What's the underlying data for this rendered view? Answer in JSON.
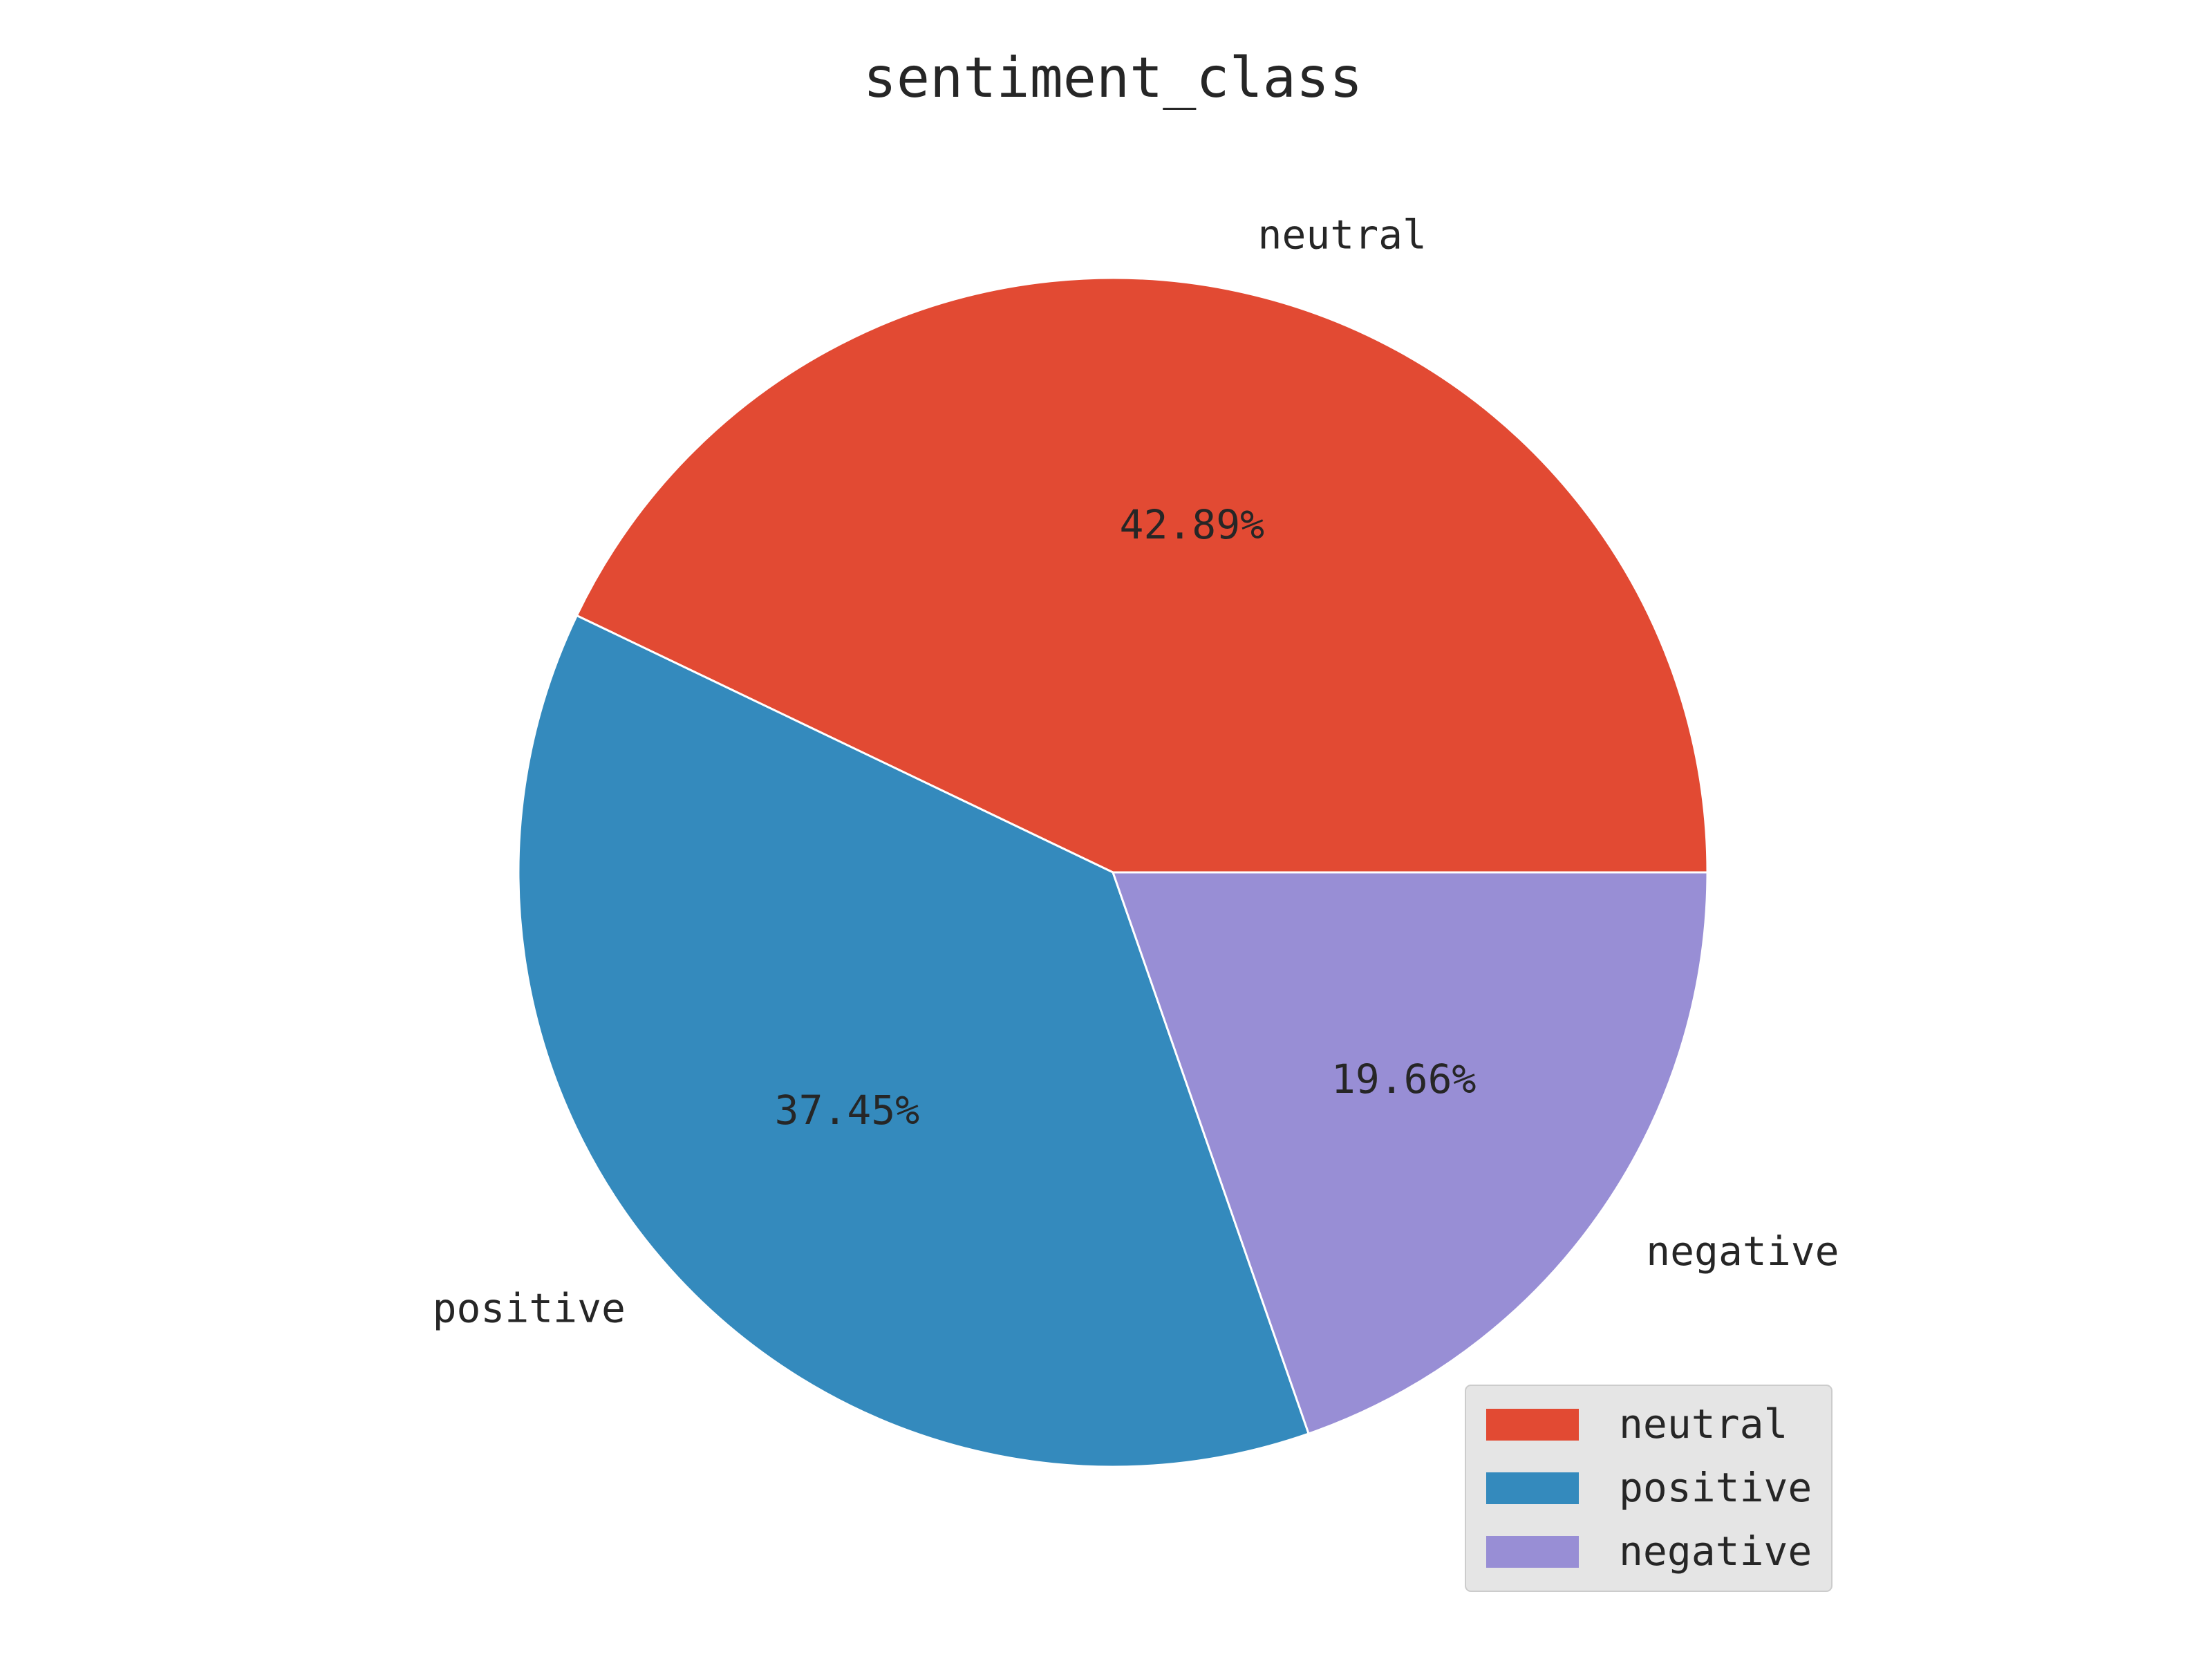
{
  "chart_data": {
    "type": "pie",
    "title": "sentiment_class",
    "slices": [
      {
        "label": "neutral",
        "value": 42.89,
        "pct_text": "42.89%",
        "color": "#E24A33"
      },
      {
        "label": "positive",
        "value": 37.45,
        "pct_text": "37.45%",
        "color": "#348ABD"
      },
      {
        "label": "negative",
        "value": 19.66,
        "pct_text": "19.66%",
        "color": "#988ED5"
      }
    ],
    "start_angle_deg": 0,
    "direction": "counterclockwise",
    "legend": {
      "placement": "lower-right",
      "background": "#E5E5E5",
      "entries": [
        "neutral",
        "positive",
        "negative"
      ]
    },
    "edge_color": "#ffffff"
  }
}
